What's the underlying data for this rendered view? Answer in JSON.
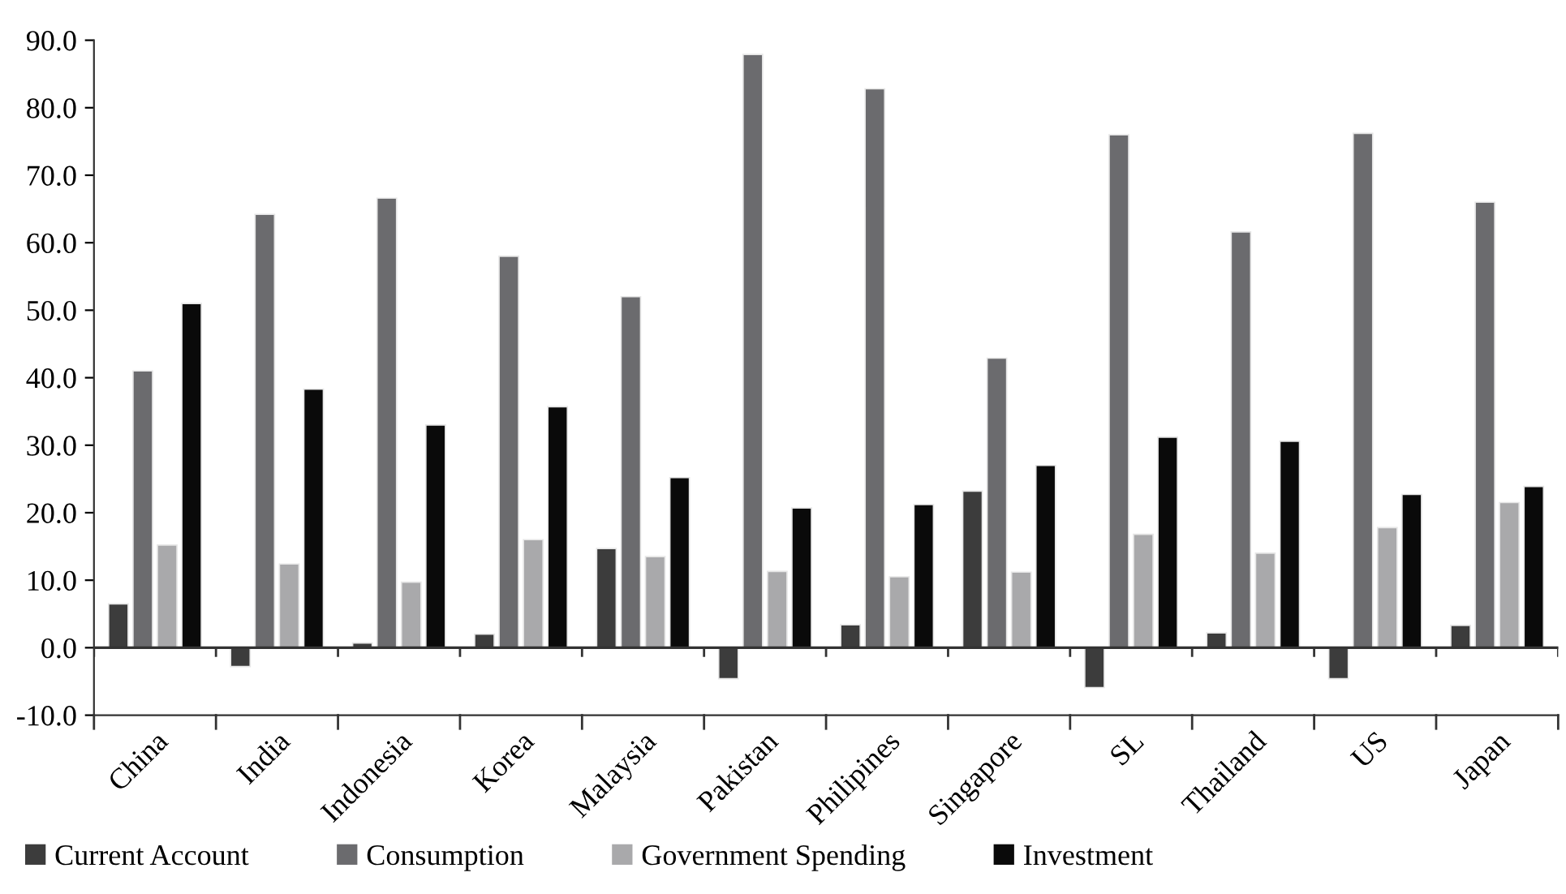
{
  "chart_data": {
    "type": "bar",
    "categories": [
      "China",
      "India",
      "Indonesia",
      "Korea",
      "Malaysia",
      "Pakistan",
      "Philipines",
      "Singapore",
      "SL",
      "Thailand",
      "US",
      "Japan"
    ],
    "series": [
      {
        "name": "Current Account",
        "color": "#3c3c3c",
        "values": [
          6.5,
          -2.8,
          0.7,
          2.0,
          14.7,
          -4.6,
          3.4,
          23.2,
          -5.9,
          2.2,
          -4.6,
          3.3
        ]
      },
      {
        "name": "Consumption",
        "color": "#6b6b6e",
        "values": [
          41.0,
          64.2,
          66.6,
          58.0,
          52.0,
          87.9,
          82.8,
          42.9,
          76.0,
          61.6,
          76.2,
          66.0
        ]
      },
      {
        "name": "Government Spending",
        "color": "#a9a9ab",
        "values": [
          15.2,
          12.4,
          9.7,
          16.0,
          13.5,
          11.3,
          10.5,
          11.2,
          16.8,
          14.0,
          17.8,
          21.5
        ]
      },
      {
        "name": "Investment",
        "color": "#0a0a0a",
        "values": [
          51.0,
          38.3,
          33.0,
          35.7,
          25.2,
          20.7,
          21.2,
          27.0,
          31.2,
          30.6,
          22.7,
          23.9
        ]
      }
    ],
    "ylim": [
      -10,
      90
    ],
    "yticks": [
      {
        "value": -10,
        "label": "-10.0"
      },
      {
        "value": 0,
        "label": "0.0"
      },
      {
        "value": 10,
        "label": "10.0"
      },
      {
        "value": 20,
        "label": "20.0"
      },
      {
        "value": 30,
        "label": "30.0"
      },
      {
        "value": 40,
        "label": "40.0"
      },
      {
        "value": 50,
        "label": "50.0"
      },
      {
        "value": 60,
        "label": "60.0"
      },
      {
        "value": 70,
        "label": "70.0"
      },
      {
        "value": 80,
        "label": "80.0"
      },
      {
        "value": 90,
        "label": "90.0"
      }
    ],
    "ref_lines": [
      {
        "axis": "y",
        "value": 0,
        "color": "#333333"
      }
    ],
    "grid": false,
    "legend": "bottom"
  }
}
